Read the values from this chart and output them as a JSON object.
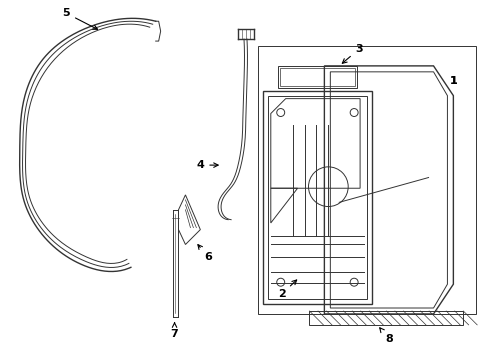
{
  "background_color": "#ffffff",
  "line_color": "#333333",
  "figure_width": 4.89,
  "figure_height": 3.6,
  "dpi": 100
}
